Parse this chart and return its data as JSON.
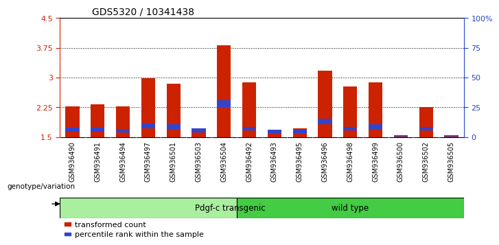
{
  "title": "GDS5320 / 10341438",
  "samples": [
    "GSM936490",
    "GSM936491",
    "GSM936494",
    "GSM936497",
    "GSM936501",
    "GSM936503",
    "GSM936504",
    "GSM936492",
    "GSM936493",
    "GSM936495",
    "GSM936496",
    "GSM936498",
    "GSM936499",
    "GSM936500",
    "GSM936502",
    "GSM936505"
  ],
  "red_values": [
    2.27,
    2.32,
    2.28,
    2.98,
    2.85,
    1.68,
    3.82,
    2.88,
    1.68,
    1.72,
    3.18,
    2.78,
    2.87,
    1.55,
    2.25,
    1.55
  ],
  "blue_values": [
    0.1,
    0.1,
    0.08,
    0.12,
    0.12,
    0.1,
    0.16,
    0.1,
    0.08,
    0.08,
    0.14,
    0.1,
    0.12,
    0.04,
    0.1,
    0.04
  ],
  "blue_positions": [
    1.64,
    1.64,
    1.62,
    1.72,
    1.7,
    1.62,
    2.26,
    1.66,
    1.6,
    1.6,
    1.82,
    1.66,
    1.7,
    1.51,
    1.66,
    1.51
  ],
  "ymin": 1.5,
  "ymax": 4.5,
  "y2min": 0,
  "y2max": 100,
  "yticks": [
    1.5,
    2.25,
    3.0,
    3.75,
    4.5
  ],
  "ytick_labels": [
    "1.5",
    "2.25",
    "3",
    "3.75",
    "4.5"
  ],
  "y2ticks": [
    0,
    25,
    50,
    75,
    100
  ],
  "y2tick_labels": [
    "0",
    "25",
    "50",
    "75",
    "100%"
  ],
  "bar_bottom": 1.5,
  "bar_color_red": "#cc2200",
  "bar_color_blue": "#3344cc",
  "bar_width": 0.55,
  "group1_label": "Pdgf-c transgenic",
  "group2_label": "wild type",
  "group1_color": "#aaeea0",
  "group2_color": "#44cc44",
  "group1_count": 7,
  "group2_count": 9,
  "genotype_label": "genotype/variation",
  "legend1": "transformed count",
  "legend2": "percentile rank within the sample",
  "axis_color_left": "#cc2200",
  "axis_color_right": "#2244cc",
  "tick_label_bg": "#cccccc",
  "grid_color": "#000000"
}
